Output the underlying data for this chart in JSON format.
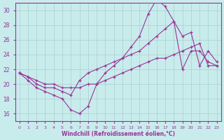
{
  "xlabel": "Windchill (Refroidissement éolien,°C)",
  "bg_color": "#c8ecec",
  "line_color": "#993399",
  "grid_color": "#aacccc",
  "xlim": [
    -0.5,
    23.5
  ],
  "ylim": [
    15,
    31
  ],
  "xticks": [
    0,
    1,
    2,
    3,
    4,
    5,
    6,
    7,
    8,
    9,
    10,
    11,
    12,
    13,
    14,
    15,
    16,
    17,
    18,
    19,
    20,
    21,
    22,
    23
  ],
  "yticks": [
    16,
    18,
    20,
    22,
    24,
    26,
    28,
    30
  ],
  "line1_x": [
    0,
    1,
    2,
    3,
    4,
    5,
    6,
    7,
    8,
    9,
    10,
    11,
    12,
    13,
    14,
    15,
    16,
    17,
    18,
    19,
    20,
    21,
    22,
    23
  ],
  "line1_y": [
    21.5,
    20.5,
    19.5,
    19.0,
    18.5,
    18.0,
    16.5,
    16.0,
    17.0,
    20.0,
    21.5,
    22.5,
    23.5,
    25.0,
    26.5,
    29.5,
    31.5,
    30.5,
    28.5,
    22.0,
    24.5,
    24.5,
    23.0,
    22.5
  ],
  "line2_x": [
    0,
    1,
    2,
    3,
    4,
    5,
    6,
    7,
    8,
    9,
    10,
    11,
    12,
    13,
    14,
    15,
    16,
    17,
    18,
    19,
    20,
    21,
    22,
    23
  ],
  "line2_y": [
    21.5,
    21.0,
    20.0,
    19.5,
    19.5,
    19.0,
    18.5,
    20.5,
    21.5,
    22.0,
    22.5,
    23.0,
    23.5,
    24.0,
    24.5,
    25.5,
    26.5,
    27.5,
    28.5,
    26.5,
    27.0,
    22.5,
    24.5,
    23.0
  ],
  "line3_x": [
    0,
    1,
    2,
    3,
    4,
    5,
    6,
    7,
    8,
    9,
    10,
    11,
    12,
    13,
    14,
    15,
    16,
    17,
    18,
    19,
    20,
    21,
    22,
    23
  ],
  "line3_y": [
    21.5,
    21.0,
    20.5,
    20.0,
    20.0,
    19.5,
    19.5,
    19.5,
    20.0,
    20.0,
    20.5,
    21.0,
    21.5,
    22.0,
    22.5,
    23.0,
    23.5,
    23.5,
    24.0,
    24.5,
    25.0,
    25.5,
    22.5,
    22.5
  ]
}
